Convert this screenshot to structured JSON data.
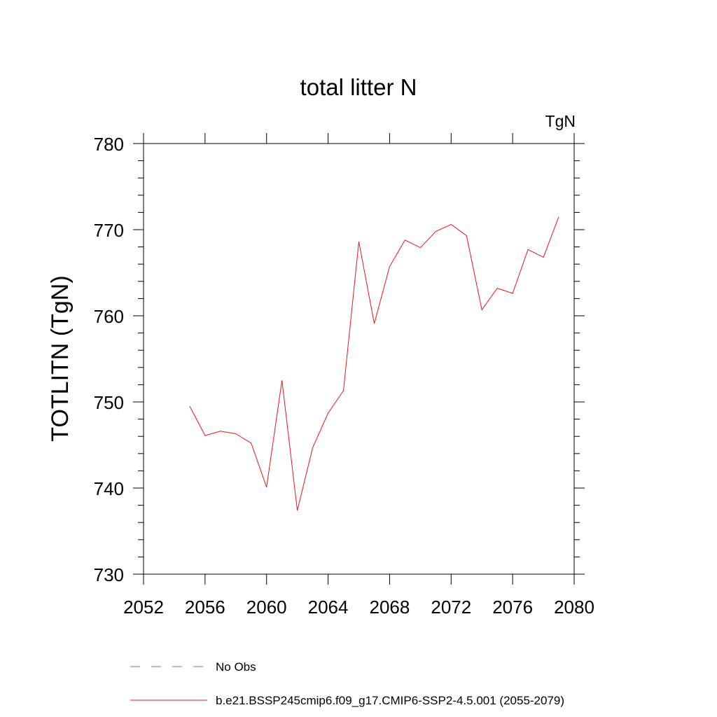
{
  "chart_data": {
    "type": "line",
    "title": "total litter N",
    "units_label": "TgN",
    "ylabel": "TOTLITN  (TgN)",
    "xlabel": "",
    "xlim": [
      2052,
      2080
    ],
    "ylim": [
      730,
      780
    ],
    "x_ticks": [
      2052,
      2056,
      2060,
      2064,
      2068,
      2072,
      2076,
      2080
    ],
    "y_ticks": [
      730,
      740,
      750,
      760,
      770,
      780
    ],
    "x_tick_labels": [
      "2052",
      "2056",
      "2060",
      "2064",
      "2068",
      "2072",
      "2076",
      "2080"
    ],
    "y_tick_labels": [
      "730",
      "740",
      "750",
      "760",
      "770",
      "780"
    ],
    "grid": false,
    "legend_position": "bottom",
    "series": [
      {
        "name": "b.e21.BSSP245cmip6.f09_g17.CMIP6-SSP2-4.5.001 (2055-2079)",
        "color": "#e8141c",
        "style": "solid",
        "x": [
          2055,
          2056,
          2057,
          2058,
          2059,
          2060,
          2061,
          2062,
          2063,
          2064,
          2065,
          2066,
          2067,
          2068,
          2069,
          2070,
          2071,
          2072,
          2073,
          2074,
          2075,
          2076,
          2077,
          2078,
          2079
        ],
        "values": [
          749.5,
          746.1,
          746.6,
          746.3,
          745.2,
          740.1,
          752.5,
          737.4,
          744.7,
          748.7,
          751.3,
          768.6,
          759.1,
          765.7,
          768.8,
          767.9,
          769.8,
          770.6,
          769.3,
          760.7,
          763.2,
          762.6,
          767.7,
          766.8,
          771.5
        ]
      }
    ],
    "legend": [
      {
        "label": "No Obs",
        "color": "#6b6bc8",
        "style": "dashed"
      },
      {
        "label": "b.e21.BSSP245cmip6.f09_g17.CMIP6-SSP2-4.5.001 (2055-2079)",
        "color": "#e8141c",
        "style": "solid"
      }
    ]
  }
}
